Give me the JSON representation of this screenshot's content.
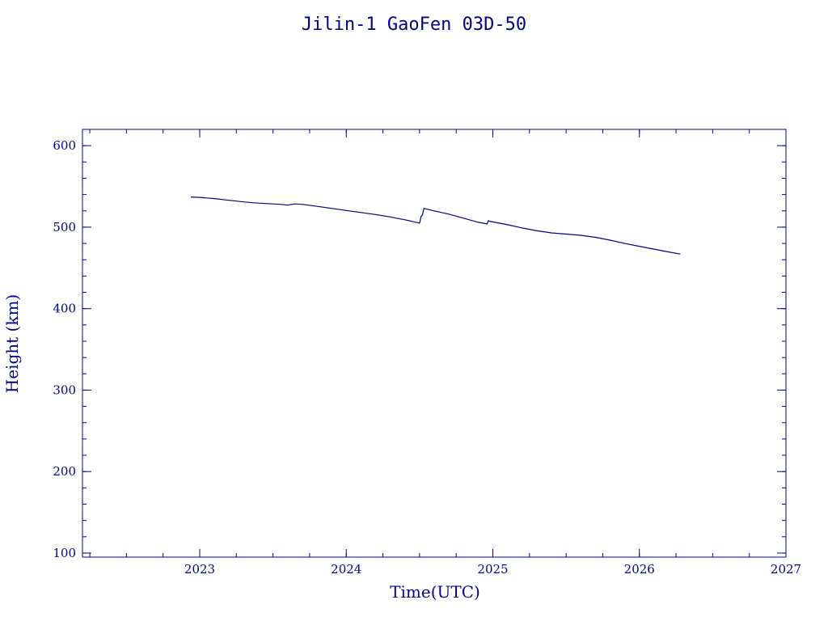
{
  "chart_data": {
    "type": "line",
    "title": "Jilin-1 GaoFen 03D-50",
    "xlabel": "Time(UTC)",
    "ylabel": "Height (km)",
    "xlim": [
      2022.2,
      2027.0
    ],
    "ylim": [
      95,
      620
    ],
    "x_ticks": [
      2023,
      2024,
      2025,
      2026,
      2027
    ],
    "x_tick_labels": [
      "2023",
      "2024",
      "2025",
      "2026",
      "2027"
    ],
    "x_minor_step": 0.25,
    "y_ticks": [
      100,
      200,
      300,
      400,
      500,
      600
    ],
    "y_tick_labels": [
      "100",
      "200",
      "300",
      "400",
      "500",
      "600"
    ],
    "y_minor_step": 20,
    "grid": false,
    "legend": "none",
    "series": [
      {
        "x": [
          2022.94,
          2023.0,
          2023.1,
          2023.2,
          2023.3,
          2023.36,
          2023.45,
          2023.55,
          2023.6,
          2023.65,
          2023.7,
          2023.8,
          2023.9,
          2024.0,
          2024.1,
          2024.2,
          2024.3,
          2024.4,
          2024.5,
          2024.51,
          2024.52,
          2024.53,
          2024.55,
          2024.6,
          2024.7,
          2024.8,
          2024.9,
          2024.96,
          2024.97,
          2024.98,
          2025.0,
          2025.1,
          2025.2,
          2025.3,
          2025.4,
          2025.5,
          2025.6,
          2025.7,
          2025.8,
          2025.9,
          2026.0,
          2026.1,
          2026.2,
          2026.28
        ],
        "y": [
          537,
          536.5,
          535,
          533,
          531,
          530,
          529,
          528,
          527,
          528.5,
          528,
          525.5,
          523,
          520.5,
          518,
          515.5,
          512.5,
          509,
          505,
          513,
          515,
          523,
          522,
          520,
          516,
          511,
          506,
          504,
          508,
          507,
          506.5,
          503,
          499,
          495.5,
          493,
          491.5,
          490,
          487.5,
          484,
          480,
          476.5,
          473,
          469.5,
          467
        ]
      }
    ],
    "colors": {
      "foreground": "#00008b",
      "background": "#ffffff"
    }
  }
}
